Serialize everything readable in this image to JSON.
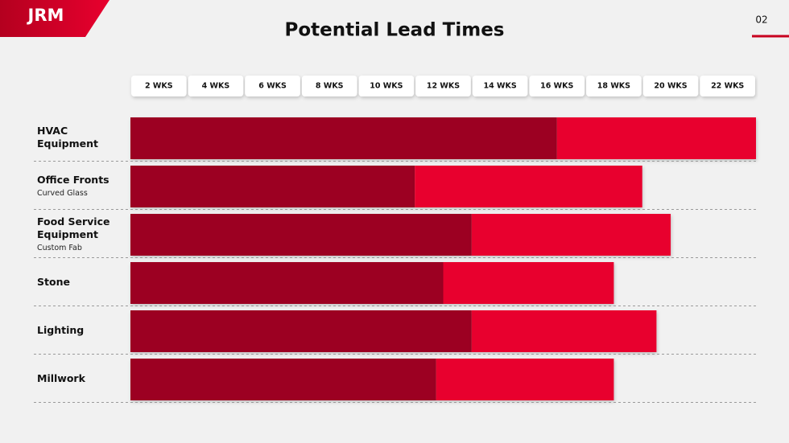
{
  "header": {
    "logo": "JRM",
    "page_number": "02"
  },
  "chart_data": {
    "type": "stacked-barh",
    "title": "Potential Lead Times",
    "categories": [
      "HVAC Equipment",
      "Office Fronts",
      "Food Service Equipment",
      "Stone",
      "Lighting",
      "Millwork"
    ],
    "category_notes": [
      null,
      "Curved Glass",
      "Custom Fab",
      null,
      null,
      null
    ],
    "series": [
      {
        "color": "#9c0020",
        "values": [
          15,
          10,
          12,
          11,
          12,
          10.75
        ]
      },
      {
        "color": "#e8002e",
        "values": [
          7,
          8,
          7,
          6,
          6.5,
          6.25
        ]
      }
    ],
    "xlim": [
      0,
      22
    ],
    "xticks": [
      {
        "value": 2,
        "label": "2 WKS"
      },
      {
        "value": 4,
        "label": "4 WKS"
      },
      {
        "value": 6,
        "label": "6 WKS"
      },
      {
        "value": 8,
        "label": "8 WKS"
      },
      {
        "value": 10,
        "label": "10 WKS"
      },
      {
        "value": 12,
        "label": "12 WKS"
      },
      {
        "value": 14,
        "label": "14 WKS"
      },
      {
        "value": 16,
        "label": "16 WKS"
      },
      {
        "value": 18,
        "label": "18 WKS"
      },
      {
        "value": 20,
        "label": "20 WKS"
      },
      {
        "value": 22,
        "label": "22 WKS"
      }
    ]
  }
}
